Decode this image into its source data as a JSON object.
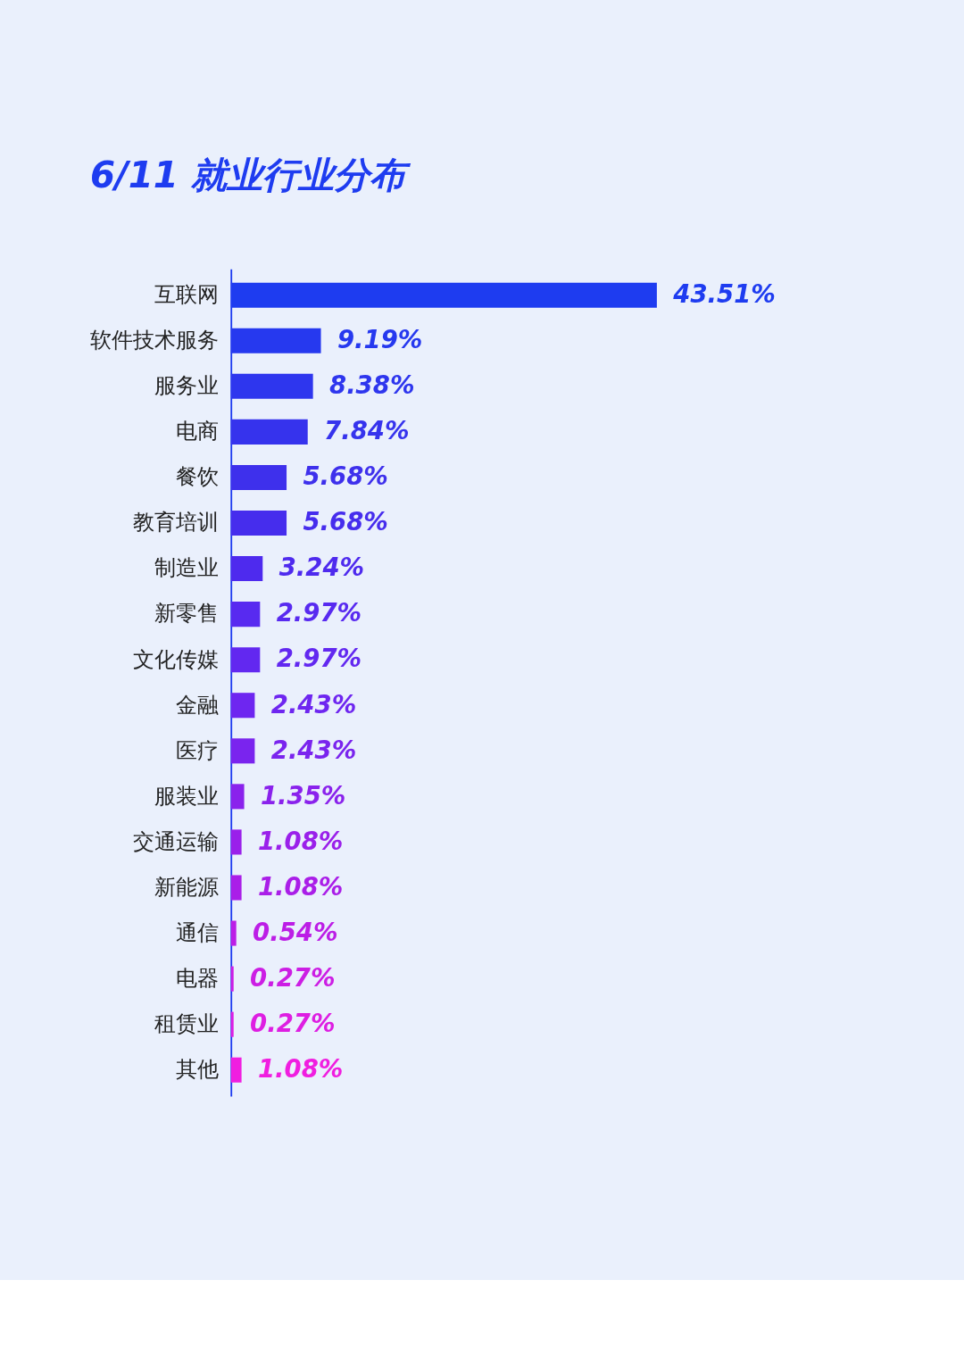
{
  "chart_data": {
    "type": "bar",
    "orientation": "horizontal",
    "title": "6/11 就业行业分布",
    "categories": [
      "互联网",
      "软件技术服务",
      "服务业",
      "电商",
      "餐饮",
      "教育培训",
      "制造业",
      "新零售",
      "文化传媒",
      "金融",
      "医疗",
      "服装业",
      "交通运输",
      "新能源",
      "通信",
      "电器",
      "租赁业",
      "其他"
    ],
    "values": [
      43.51,
      9.19,
      8.38,
      7.84,
      5.68,
      5.68,
      3.24,
      2.97,
      2.97,
      2.43,
      2.43,
      1.35,
      1.08,
      1.08,
      0.54,
      0.27,
      0.27,
      1.08
    ],
    "value_labels": [
      "43.51%",
      "9.19%",
      "8.38%",
      "7.84%",
      "5.68%",
      "5.68%",
      "3.24%",
      "2.97%",
      "2.97%",
      "2.43%",
      "2.43%",
      "1.35%",
      "1.08%",
      "1.08%",
      "0.54%",
      "0.27%",
      "0.27%",
      "1.08%"
    ],
    "colors": [
      "#1e3cf0",
      "#2639ef",
      "#2e36ee",
      "#3633ed",
      "#3e30ec",
      "#462ded",
      "#4e2aee",
      "#582af0",
      "#6228f0",
      "#6e26f0",
      "#7a24ee",
      "#8a22ec",
      "#9a20ea",
      "#aa1ee8",
      "#bc1ee6",
      "#cc1ee4",
      "#de1ee2",
      "#f01ee0"
    ],
    "grid": false,
    "tick_labels": "y"
  }
}
